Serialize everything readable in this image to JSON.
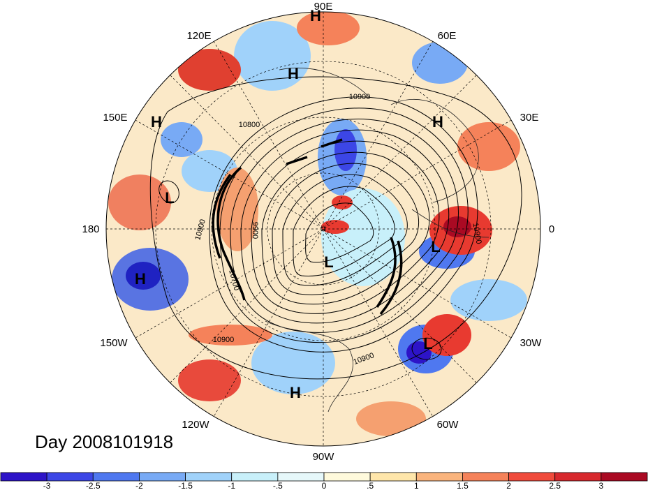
{
  "title_label": "Day 2008101918",
  "longitude_labels": [
    {
      "id": "lon-90e",
      "text": "90E"
    },
    {
      "id": "lon-120e",
      "text": "120E"
    },
    {
      "id": "lon-60e",
      "text": "60E"
    },
    {
      "id": "lon-150e",
      "text": "150E"
    },
    {
      "id": "lon-30e",
      "text": "30E"
    },
    {
      "id": "lon-180",
      "text": "180"
    },
    {
      "id": "lon-0",
      "text": "0"
    },
    {
      "id": "lon-150w",
      "text": "150W"
    },
    {
      "id": "lon-30w",
      "text": "30W"
    },
    {
      "id": "lon-120w",
      "text": "120W"
    },
    {
      "id": "lon-60w",
      "text": "60W"
    },
    {
      "id": "lon-90w",
      "text": "90W"
    }
  ],
  "pressure_centers": [
    {
      "id": "high-top",
      "text": "H"
    },
    {
      "id": "high-siberia",
      "text": "H"
    },
    {
      "id": "high-west-pacific",
      "text": "H"
    },
    {
      "id": "high-central-asia",
      "text": "H"
    },
    {
      "id": "low-dateline",
      "text": "L"
    },
    {
      "id": "high-north-pacific",
      "text": "H"
    },
    {
      "id": "low-pole",
      "text": "L"
    },
    {
      "id": "low-north-atlantic",
      "text": "L"
    },
    {
      "id": "low-central-atlantic",
      "text": "L"
    },
    {
      "id": "high-mexico",
      "text": "H"
    }
  ],
  "contour_labels": [
    {
      "id": "c1",
      "text": "10900"
    },
    {
      "id": "c2",
      "text": "10800"
    },
    {
      "id": "c3",
      "text": "10900"
    },
    {
      "id": "c4",
      "text": "9900"
    },
    {
      "id": "c5",
      "text": "10700"
    },
    {
      "id": "c6",
      "text": "10900"
    },
    {
      "id": "c7",
      "text": "10900"
    },
    {
      "id": "c8",
      "text": "10900"
    }
  ],
  "colorbar": {
    "colors": [
      "#2d14c8",
      "#3c46e6",
      "#4f78f0",
      "#78aaf5",
      "#a0d2fa",
      "#c8f0fa",
      "#e6f8fa",
      "#fffadc",
      "#ffe6aa",
      "#fab47d",
      "#f5825a",
      "#f04b3c",
      "#d7282d",
      "#aa0a23"
    ],
    "tick_labels": [
      "-3",
      "-2.5",
      "-2",
      "-1.5",
      "-1",
      "-.5",
      "0",
      ".5",
      "1",
      "1.5",
      "2",
      "2.5",
      "3"
    ]
  }
}
